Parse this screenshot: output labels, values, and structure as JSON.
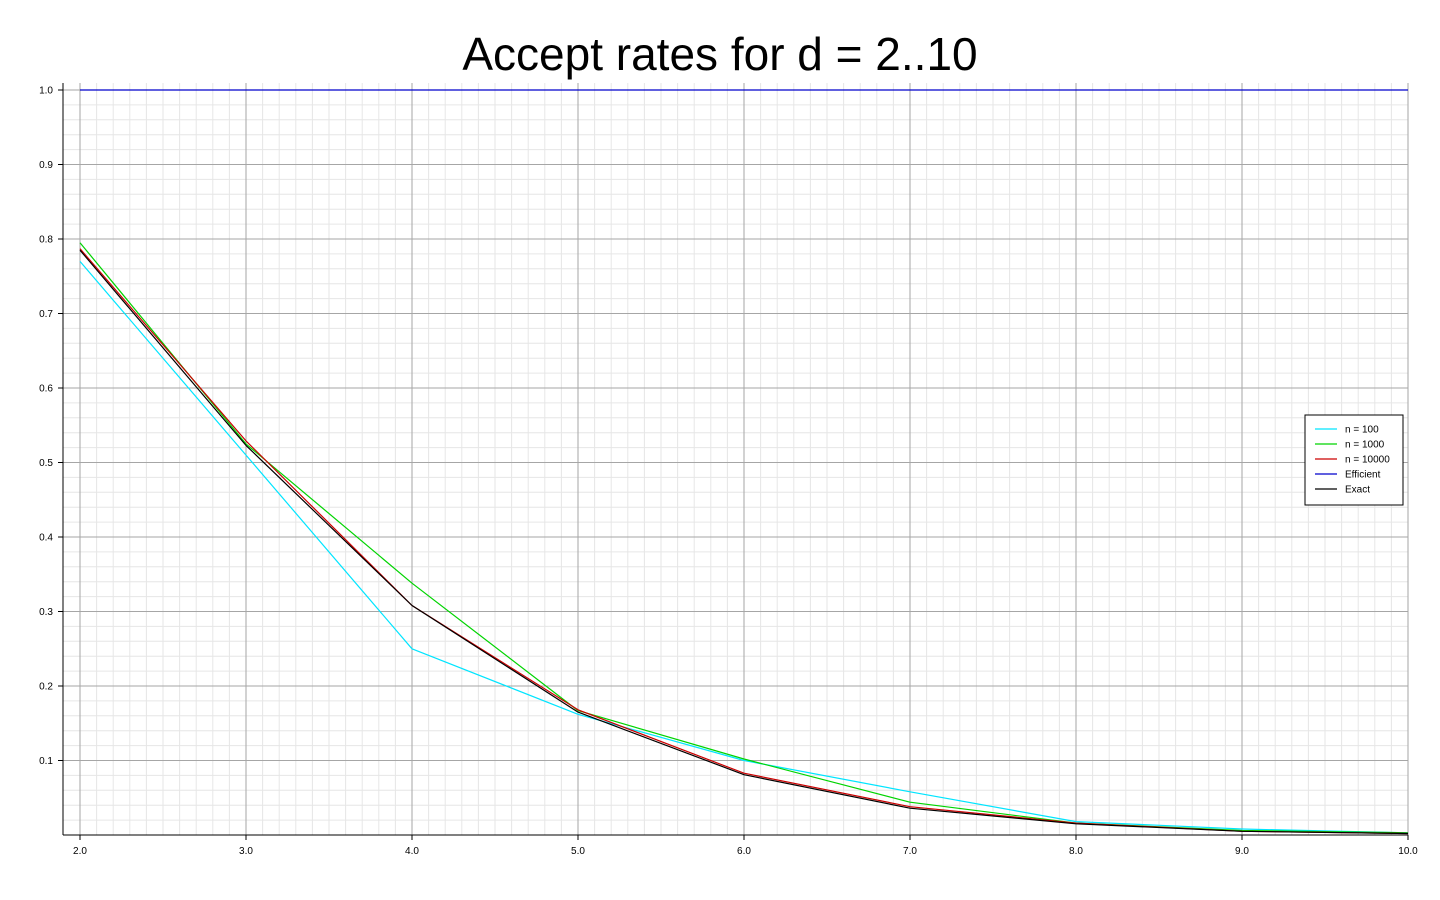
{
  "chart_data": {
    "type": "line",
    "title": "Accept rates for d = 2..10",
    "xlabel": "",
    "ylabel": "",
    "xlim": [
      2.0,
      10.0
    ],
    "ylim": [
      0.0,
      1.0
    ],
    "x_ticks": [
      2.0,
      3.0,
      4.0,
      5.0,
      6.0,
      7.0,
      8.0,
      9.0,
      10.0
    ],
    "x_tick_labels": [
      "2.0",
      "3.0",
      "4.0",
      "5.0",
      "6.0",
      "7.0",
      "8.0",
      "9.0",
      "10.0"
    ],
    "y_ticks": [
      0.1,
      0.2,
      0.3,
      0.4,
      0.5,
      0.6,
      0.7,
      0.8,
      0.9,
      1.0
    ],
    "y_tick_labels": [
      "0.1",
      "0.2",
      "0.3",
      "0.4",
      "0.5",
      "0.6",
      "0.7",
      "0.8",
      "0.9",
      "1.0"
    ],
    "grid": true,
    "minor_grid": true,
    "legend_position": "right",
    "x": [
      2,
      3,
      4,
      5,
      6,
      7,
      8,
      9,
      10
    ],
    "series": [
      {
        "name": "n = 100",
        "color": "#00e5ff",
        "values": [
          0.77,
          0.51,
          0.25,
          0.162,
          0.1,
          0.058,
          0.018,
          0.008,
          0.003
        ]
      },
      {
        "name": "n = 1000",
        "color": "#00d400",
        "values": [
          0.795,
          0.525,
          0.338,
          0.167,
          0.102,
          0.044,
          0.016,
          0.006,
          0.003
        ]
      },
      {
        "name": "n = 10000",
        "color": "#cc0000",
        "values": [
          0.787,
          0.529,
          0.308,
          0.168,
          0.083,
          0.038,
          0.016,
          0.005,
          0.002
        ]
      },
      {
        "name": "Efficient",
        "color": "#0000cc",
        "values": [
          1.0,
          1.0,
          1.0,
          1.0,
          1.0,
          1.0,
          1.0,
          1.0,
          1.0
        ]
      },
      {
        "name": "Exact",
        "color": "#000000",
        "values": [
          0.785,
          0.523,
          0.308,
          0.165,
          0.081,
          0.036,
          0.015,
          0.005,
          0.002
        ]
      }
    ]
  }
}
